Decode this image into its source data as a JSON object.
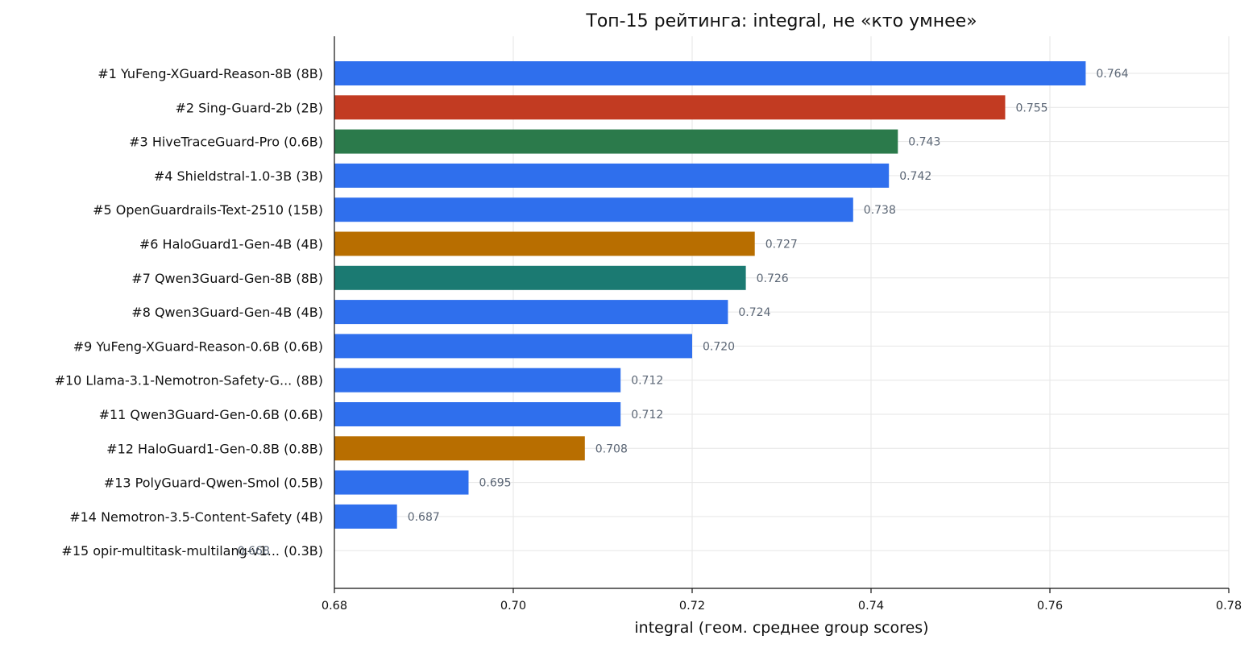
{
  "chart_data": {
    "type": "bar",
    "orientation": "horizontal",
    "title": "Топ-15 рейтинга: integral, не «кто умнее»",
    "xlabel": "integral (геом. среднее group scores)",
    "xlim": [
      0.68,
      0.78
    ],
    "xticks": [
      "0.68",
      "0.70",
      "0.72",
      "0.74",
      "0.76",
      "0.78"
    ],
    "grid": true,
    "categories": [
      "#1  YuFeng-XGuard-Reason-8B  (8B)",
      "#2  Sing-Guard-2b  (2B)",
      "#3  HiveTraceGuard-Pro  (0.6B)",
      "#4  Shieldstral-1.0-3B  (3B)",
      "#5  OpenGuardrails-Text-2510  (15B)",
      "#6  HaloGuard1-Gen-4B  (4B)",
      "#7  Qwen3Guard-Gen-8B  (8B)",
      "#8  Qwen3Guard-Gen-4B  (4B)",
      "#9  YuFeng-XGuard-Reason-0.6B  (0.6B)",
      "#10  Llama-3.1-Nemotron-Safety-G...  (8B)",
      "#11  Qwen3Guard-Gen-0.6B  (0.6B)",
      "#12  HaloGuard1-Gen-0.8B  (0.8B)",
      "#13  PolyGuard-Qwen-Smol  (0.5B)",
      "#14  Nemotron-3.5-Content-Safety  (4B)",
      "#15  opir-multitask-multilang-v1...  (0.3B)"
    ],
    "values": [
      0.764,
      0.755,
      0.743,
      0.742,
      0.738,
      0.727,
      0.726,
      0.724,
      0.72,
      0.712,
      0.712,
      0.708,
      0.695,
      0.687,
      0.668
    ],
    "value_labels": [
      "0.764",
      "0.755",
      "0.743",
      "0.742",
      "0.738",
      "0.727",
      "0.726",
      "0.724",
      "0.720",
      "0.712",
      "0.712",
      "0.708",
      "0.695",
      "0.687",
      "0.668"
    ],
    "colors": [
      "#2f6fed",
      "#c23b22",
      "#2b7a4b",
      "#2f6fed",
      "#2f6fed",
      "#b86e00",
      "#1b7a72",
      "#2f6fed",
      "#2f6fed",
      "#2f6fed",
      "#2f6fed",
      "#b86e00",
      "#2f6fed",
      "#2f6fed",
      "#2f6fed"
    ]
  }
}
